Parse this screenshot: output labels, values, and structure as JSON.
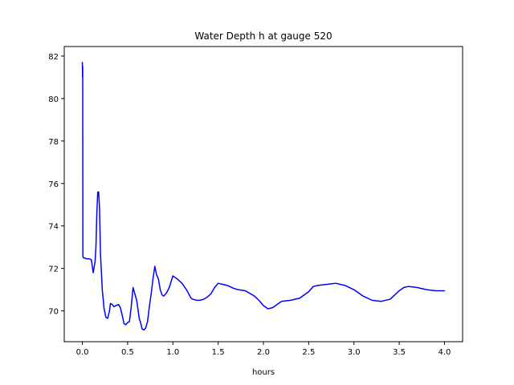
{
  "chart_data": {
    "type": "line",
    "title": "Water Depth h at gauge 520",
    "xlabel": "hours",
    "ylabel": "",
    "xlim": [
      -0.2,
      4.2
    ],
    "ylim": [
      68.55,
      82.45
    ],
    "xticks": [
      0.0,
      0.5,
      1.0,
      1.5,
      2.0,
      2.5,
      3.0,
      3.5,
      4.0
    ],
    "xtick_labels": [
      "0.0",
      "0.5",
      "1.0",
      "1.5",
      "2.0",
      "2.5",
      "3.0",
      "3.5",
      "4.0"
    ],
    "yticks": [
      70,
      72,
      74,
      76,
      78,
      80,
      82
    ],
    "ytick_labels": [
      "70",
      "72",
      "74",
      "76",
      "78",
      "80",
      "82"
    ],
    "grid": false,
    "series": [
      {
        "name": "",
        "color": "#0000ff",
        "x": [
          0.0,
          0.002,
          0.004,
          0.006,
          0.01,
          0.02,
          0.05,
          0.08,
          0.1,
          0.12,
          0.14,
          0.15,
          0.16,
          0.17,
          0.18,
          0.19,
          0.2,
          0.22,
          0.24,
          0.26,
          0.28,
          0.3,
          0.31,
          0.33,
          0.35,
          0.37,
          0.4,
          0.42,
          0.44,
          0.46,
          0.48,
          0.5,
          0.52,
          0.54,
          0.56,
          0.58,
          0.6,
          0.61,
          0.62,
          0.63,
          0.64,
          0.66,
          0.68,
          0.7,
          0.72,
          0.74,
          0.76,
          0.78,
          0.8,
          0.82,
          0.84,
          0.86,
          0.88,
          0.9,
          0.93,
          0.96,
          1.0,
          1.05,
          1.1,
          1.15,
          1.2,
          1.22,
          1.26,
          1.3,
          1.34,
          1.38,
          1.42,
          1.46,
          1.5,
          1.55,
          1.6,
          1.65,
          1.68,
          1.72,
          1.8,
          1.9,
          1.95,
          2.0,
          2.05,
          2.1,
          2.15,
          2.2,
          2.3,
          2.4,
          2.5,
          2.55,
          2.6,
          2.7,
          2.8,
          2.9,
          3.0,
          3.1,
          3.2,
          3.3,
          3.4,
          3.5,
          3.55,
          3.6,
          3.7,
          3.8,
          3.9,
          4.0
        ],
        "values": [
          81.7,
          81.0,
          81.5,
          72.6,
          72.5,
          72.5,
          72.45,
          72.45,
          72.4,
          71.8,
          72.3,
          73.0,
          74.6,
          75.6,
          75.6,
          74.8,
          72.7,
          71.0,
          70.1,
          69.7,
          69.65,
          70.0,
          70.35,
          70.3,
          70.2,
          70.25,
          70.3,
          70.15,
          69.8,
          69.4,
          69.35,
          69.45,
          69.5,
          70.2,
          71.1,
          70.8,
          70.5,
          70.2,
          69.9,
          69.6,
          69.5,
          69.15,
          69.1,
          69.2,
          69.5,
          70.2,
          70.8,
          71.5,
          72.1,
          71.7,
          71.5,
          71.0,
          70.75,
          70.7,
          70.85,
          71.1,
          71.65,
          71.5,
          71.3,
          71.0,
          70.6,
          70.55,
          70.5,
          70.5,
          70.55,
          70.65,
          70.8,
          71.1,
          71.3,
          71.25,
          71.2,
          71.1,
          71.05,
          71.0,
          70.95,
          70.7,
          70.5,
          70.25,
          70.1,
          70.15,
          70.3,
          70.45,
          70.5,
          70.6,
          70.9,
          71.15,
          71.2,
          71.25,
          71.3,
          71.2,
          71.0,
          70.7,
          70.5,
          70.45,
          70.55,
          70.95,
          71.1,
          71.15,
          71.1,
          71.0,
          70.95,
          70.95
        ]
      }
    ]
  }
}
